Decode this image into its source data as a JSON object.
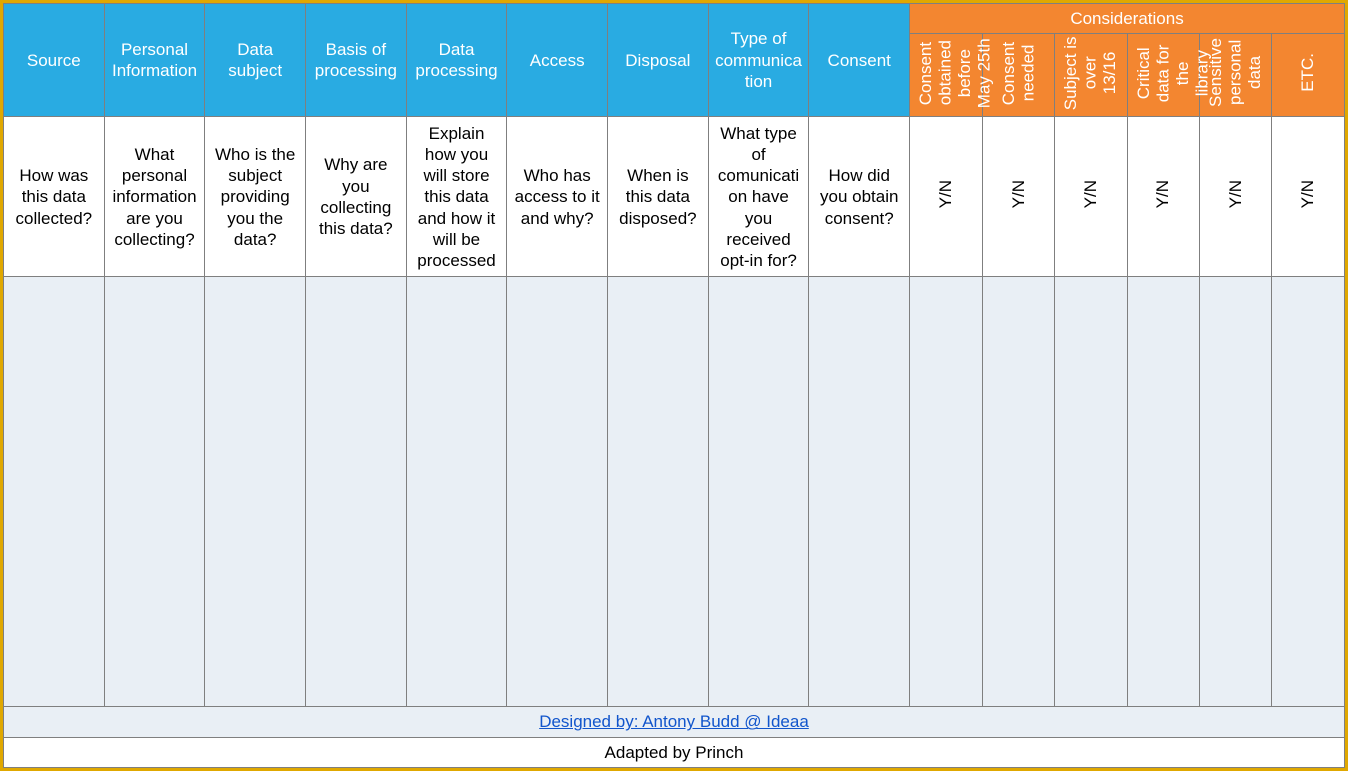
{
  "table": {
    "type": "table",
    "outer_border_color": "#e0a800",
    "grid_border_color": "#7f7f7f",
    "main_header_bg": "#29abe2",
    "main_header_text_color": "#ffffff",
    "considerations_bg": "#f38630",
    "considerations_text_color": "#ffffff",
    "body_bg": "#e9eff5",
    "desc_row_bg": "#ffffff",
    "link_color": "#1155cc",
    "main_header_fontsize": 17,
    "consid_sub_fontsize": 12,
    "desc_fontsize": 17,
    "footer_fontsize": 13,
    "main_headers": [
      "Source",
      "Personal Information",
      "Data subject",
      "Basis of processing",
      "Data processing",
      "Access",
      "Disposal",
      "Type of communication",
      "Consent"
    ],
    "considerations_label": "Considerations",
    "considerations_sub": [
      "Consent obtained before May 25th",
      "Consent needed",
      "Subject is over 13/16",
      "Critical data for the library",
      "Sensitive personal data",
      "ETC."
    ],
    "descriptions": [
      "How was this data collected?",
      "What personal information are you collecting?",
      "Who is the subject providing you the data?",
      "Why are you collecting this data?",
      "Explain how you will store this data and how it will be processed",
      "Who has access to it and why?",
      "When is this data disposed?",
      "What type of comunication have you received opt-in for?",
      "How did you obtain consent?"
    ],
    "yn_label": "Y/N",
    "footer_link": "Designed by: Antony Budd @ Ideaa",
    "footer_text": "Adapted by Princh"
  }
}
